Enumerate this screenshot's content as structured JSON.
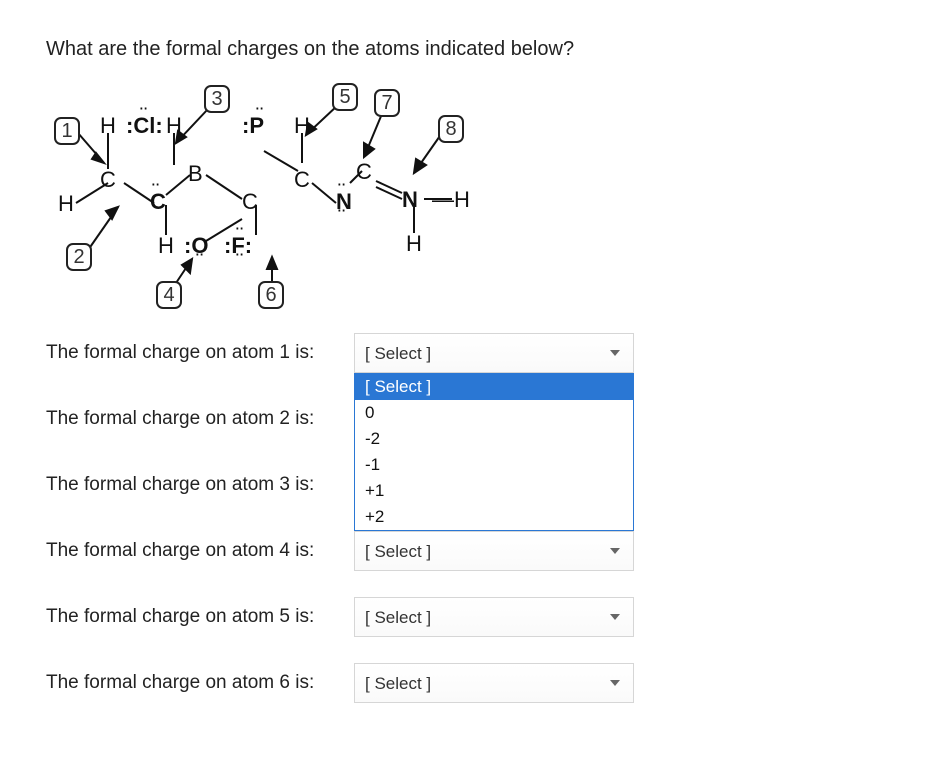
{
  "question": "What are the formal charges on the atoms indicated below?",
  "labels": {
    "b1": "1",
    "b2": "2",
    "b3": "3",
    "b4": "4",
    "b5": "5",
    "b6": "6",
    "b7": "7",
    "b8": "8"
  },
  "atoms": {
    "H1": "H",
    "Cl": ":Cl:",
    "H2": "H",
    "P": ":P",
    "H3": "H",
    "Cleft": "C",
    "Cmid": "C",
    "B": "B",
    "Cmid2": "C",
    "Cr": "C",
    "Cr2": "C",
    "Hleft": "H",
    "Cdots": "C",
    "N": "N",
    "N2": "N",
    "Hright": "H",
    "Ndots": "N",
    "Hb": "H",
    "O": ":O",
    "F": ":F:",
    "Hbr": "H"
  },
  "rows": [
    {
      "label": "The formal charge on atom 1 is:",
      "open": true
    },
    {
      "label": "The formal charge on atom 2 is:",
      "open": false
    },
    {
      "label": "The formal charge on atom 3 is:",
      "open": false
    },
    {
      "label": "The formal charge on atom 4 is:",
      "open": false
    },
    {
      "label": "The formal charge on atom 5 is:",
      "open": false
    },
    {
      "label": "The formal charge on atom 6 is:",
      "open": false
    }
  ],
  "select_placeholder": "[ Select ]",
  "dropdown_options": [
    "[ Select ]",
    "0",
    "-2",
    "-1",
    "+1",
    "+2"
  ],
  "colors": {
    "highlight": "#2a77d4",
    "border": "#d6d6d6"
  }
}
